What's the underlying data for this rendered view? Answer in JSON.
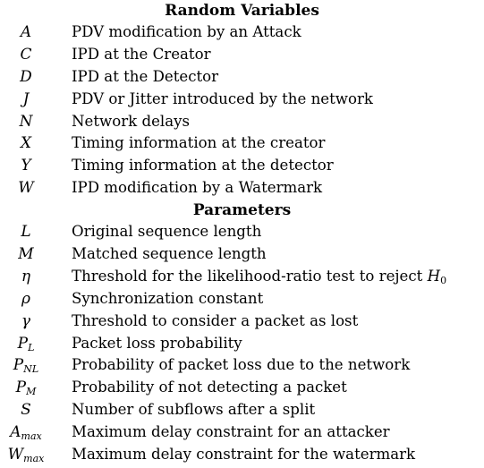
{
  "sections": [
    {
      "heading": "Random Variables",
      "rows": [
        {
          "symbol": "A",
          "sub": "",
          "description": "PDV modification by an Attack"
        },
        {
          "symbol": "C",
          "sub": "",
          "description": "IPD at the Creator"
        },
        {
          "symbol": "D",
          "sub": "",
          "description": "IPD at the Detector"
        },
        {
          "symbol": "J",
          "sub": "",
          "description": "PDV or Jitter introduced by the network"
        },
        {
          "symbol": "N",
          "sub": "",
          "description": "Network delays"
        },
        {
          "symbol": "X",
          "sub": "",
          "description": "Timing information at the creator"
        },
        {
          "symbol": "Y",
          "sub": "",
          "description": "Timing information at the detector"
        },
        {
          "symbol": "W",
          "sub": "",
          "description": "IPD modification by a Watermark"
        }
      ]
    },
    {
      "heading": "Parameters",
      "rows": [
        {
          "symbol": "L",
          "sub": "",
          "description": "Original sequence length"
        },
        {
          "symbol": "M",
          "sub": "",
          "description": "Matched sequence length"
        },
        {
          "symbol": "η",
          "sub": "",
          "description": "Threshold for the likelihood-ratio test to reject ",
          "math": "H",
          "math_sub": "0"
        },
        {
          "symbol": "ρ",
          "sub": "",
          "description": "Synchronization constant"
        },
        {
          "symbol": "γ",
          "sub": "",
          "description": "Threshold to consider a packet as lost"
        },
        {
          "symbol": "P",
          "sub": "L",
          "description": "Packet loss probability"
        },
        {
          "symbol": "P",
          "sub": "NL",
          "description": "Probability of packet loss due to the network"
        },
        {
          "symbol": "P",
          "sub": "M",
          "description": "Probability of not detecting a packet"
        },
        {
          "symbol": "S",
          "sub": "",
          "description": "Number of subflows after a split"
        },
        {
          "symbol": "A",
          "sub": "max",
          "description": "Maximum delay constraint for an attacker"
        },
        {
          "symbol": "W",
          "sub": "max",
          "description": "Maximum delay constraint for the watermark"
        }
      ]
    }
  ]
}
